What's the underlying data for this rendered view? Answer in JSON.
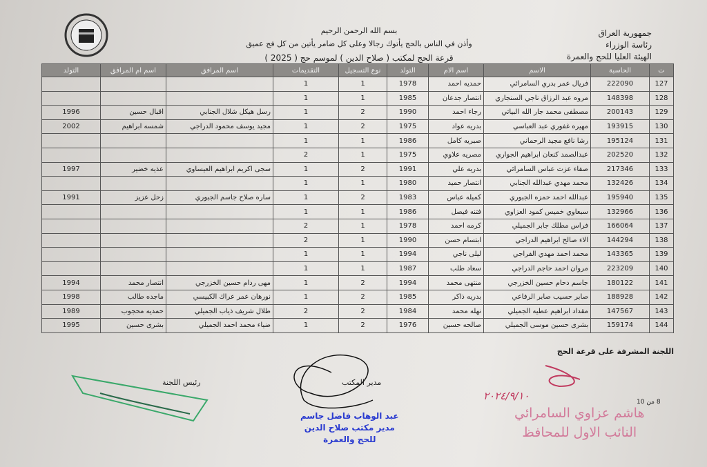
{
  "header": {
    "right": [
      "جمهورية العراق",
      "رئاسة الوزراء",
      "الهيئة العليا للحج والعمرة"
    ],
    "basmala": "بسم الله الرحمن الرحيم",
    "verse": "وأذن في الناس بالحج يأتوك رجالا وعلى كل ضامر يأتين من كل فج عميق",
    "title": "قرعة الحج لمكتب ( صلاح الدين ) لموسم حج ( 2025 )"
  },
  "table": {
    "columns": [
      "ت",
      "الحاسبة",
      "الاسم",
      "اسم الام",
      "التولد",
      "نوع التسجيل",
      "التقديمات",
      "اسم المرافق",
      "اسم ام المرافق",
      "التولد"
    ],
    "rows": [
      {
        "no": 127,
        "id": 222090,
        "name": "فريال عمر بدري السامرائي",
        "mother": "حمديه احمد",
        "birth": 1978,
        "reg": 1,
        "apps": 1
      },
      {
        "no": 128,
        "id": 148398,
        "name": "مروه عبد الرزاق ناجي السنجاري",
        "mother": "انتصار جدعان",
        "birth": 1985,
        "reg": 1,
        "apps": 1
      },
      {
        "no": 129,
        "id": 200143,
        "name": "مصطفى محمد جار الله البياتي",
        "mother": "رجاء احمد",
        "birth": 1990,
        "reg": 2,
        "apps": 1,
        "companion": {
          "name": "رسل هيكل شلال الجنابي",
          "mother": "اقبال حسين",
          "birth": 1996
        }
      },
      {
        "no": 130,
        "id": 193915,
        "name": "مهيره غفوري عبد العباسي",
        "mother": "بدريه عواد",
        "birth": 1975,
        "reg": 2,
        "apps": 1,
        "companion": {
          "name": "مجيد يوسف محمود الدراجي",
          "mother": "شمسه ابراهيم",
          "birth": 2002
        }
      },
      {
        "no": 131,
        "id": 195124,
        "name": "رشا نافع مجيد الرحماني",
        "mother": "صبريه كامل",
        "birth": 1986,
        "reg": 1,
        "apps": 1
      },
      {
        "no": 132,
        "id": 202520,
        "name": "عبدالصمد كنعان ابراهيم الجواري",
        "mother": "مصريه علاوي",
        "birth": 1975,
        "reg": 1,
        "apps": 2
      },
      {
        "no": 133,
        "id": 217346,
        "name": "صفاء عزت عباس السامرائي",
        "mother": "بدريه علي",
        "birth": 1991,
        "reg": 2,
        "apps": 1,
        "companion": {
          "name": "سجى اكريم ابراهيم العيساوي",
          "mother": "عذيه خضير",
          "birth": 1997
        }
      },
      {
        "no": 134,
        "id": 132426,
        "name": "محمد مهدي عبدالله الجنابي",
        "mother": "انتصار حميد",
        "birth": 1980,
        "reg": 1,
        "apps": 1
      },
      {
        "no": 135,
        "id": 195940,
        "name": "عبدالله احمد حمزه الجبوري",
        "mother": "كميله عباس",
        "birth": 1983,
        "reg": 2,
        "apps": 1,
        "companion": {
          "name": "ساره صلاح جاسم الجبوري",
          "mother": "زحل عزيز",
          "birth": 1991
        }
      },
      {
        "no": 136,
        "id": 132966,
        "name": "سبعاوي خميس كمود العزاوي",
        "mother": "فتنه فيصل",
        "birth": 1986,
        "reg": 1,
        "apps": 1
      },
      {
        "no": 137,
        "id": 166064,
        "name": "فراس مطلك جابر الجميلي",
        "mother": "كرمه احمد",
        "birth": 1978,
        "reg": 1,
        "apps": 2
      },
      {
        "no": 138,
        "id": 144294,
        "name": "الاء صالح ابراهيم الدراجي",
        "mother": "ابتسام حسن",
        "birth": 1990,
        "reg": 1,
        "apps": 2
      },
      {
        "no": 139,
        "id": 143365,
        "name": "محمد احمد مهدي الفراجي",
        "mother": "ليلى ناجي",
        "birth": 1994,
        "reg": 1,
        "apps": 1
      },
      {
        "no": 140,
        "id": 223209,
        "name": "مروان احمد حاجم الدراجي",
        "mother": "سعاد طلب",
        "birth": 1987,
        "reg": 1,
        "apps": 1
      },
      {
        "no": 141,
        "id": 180122,
        "name": "جاسم دحام حسين الخزرجي",
        "mother": "منتهى محمد",
        "birth": 1994,
        "reg": 2,
        "apps": 1,
        "companion": {
          "name": "مهى ردام حسين الخزرجي",
          "mother": "انتصار محمد",
          "birth": 1994
        }
      },
      {
        "no": 142,
        "id": 188928,
        "name": "صابر حسيب صابر الرفاعي",
        "mother": "بدريه ذاكر",
        "birth": 1985,
        "reg": 2,
        "apps": 1,
        "companion": {
          "name": "نورهان عمر عراك الكبيسي",
          "mother": "ماجده طالب",
          "birth": 1998
        }
      },
      {
        "no": 143,
        "id": 147567,
        "name": "مقداد ابراهيم عطيه الجميلي",
        "mother": "نهله محمد",
        "birth": 1984,
        "reg": 2,
        "apps": 2,
        "companion": {
          "name": "طلال شريف ذياب الجميلي",
          "mother": "حمديه محجوب",
          "birth": 1989
        }
      },
      {
        "no": 144,
        "id": 159174,
        "name": "بشرى حسين موسى الجميلي",
        "mother": "صالحه حسين",
        "birth": 1976,
        "reg": 2,
        "apps": 1,
        "companion": {
          "name": "ضياء محمد احمد الجميلي",
          "mother": "بشرى حسين",
          "birth": 1995
        }
      }
    ]
  },
  "footer": {
    "committee": "اللجنة المشرفة على قرعة الحج",
    "chair": "رئيس اللجنة",
    "manager": "مدير المكتب",
    "page": "8 من 10",
    "stamp_manager": [
      "عبد الوهاب فاضل جاسم",
      "مدير مكتب صلاح الدين",
      "للحج والعمرة"
    ],
    "stamp_deputy": [
      "هاشم عزاوي السامرائي",
      "النائب الاول للمحافظ"
    ],
    "date": "٢٠٢٤/٩/١٠"
  }
}
